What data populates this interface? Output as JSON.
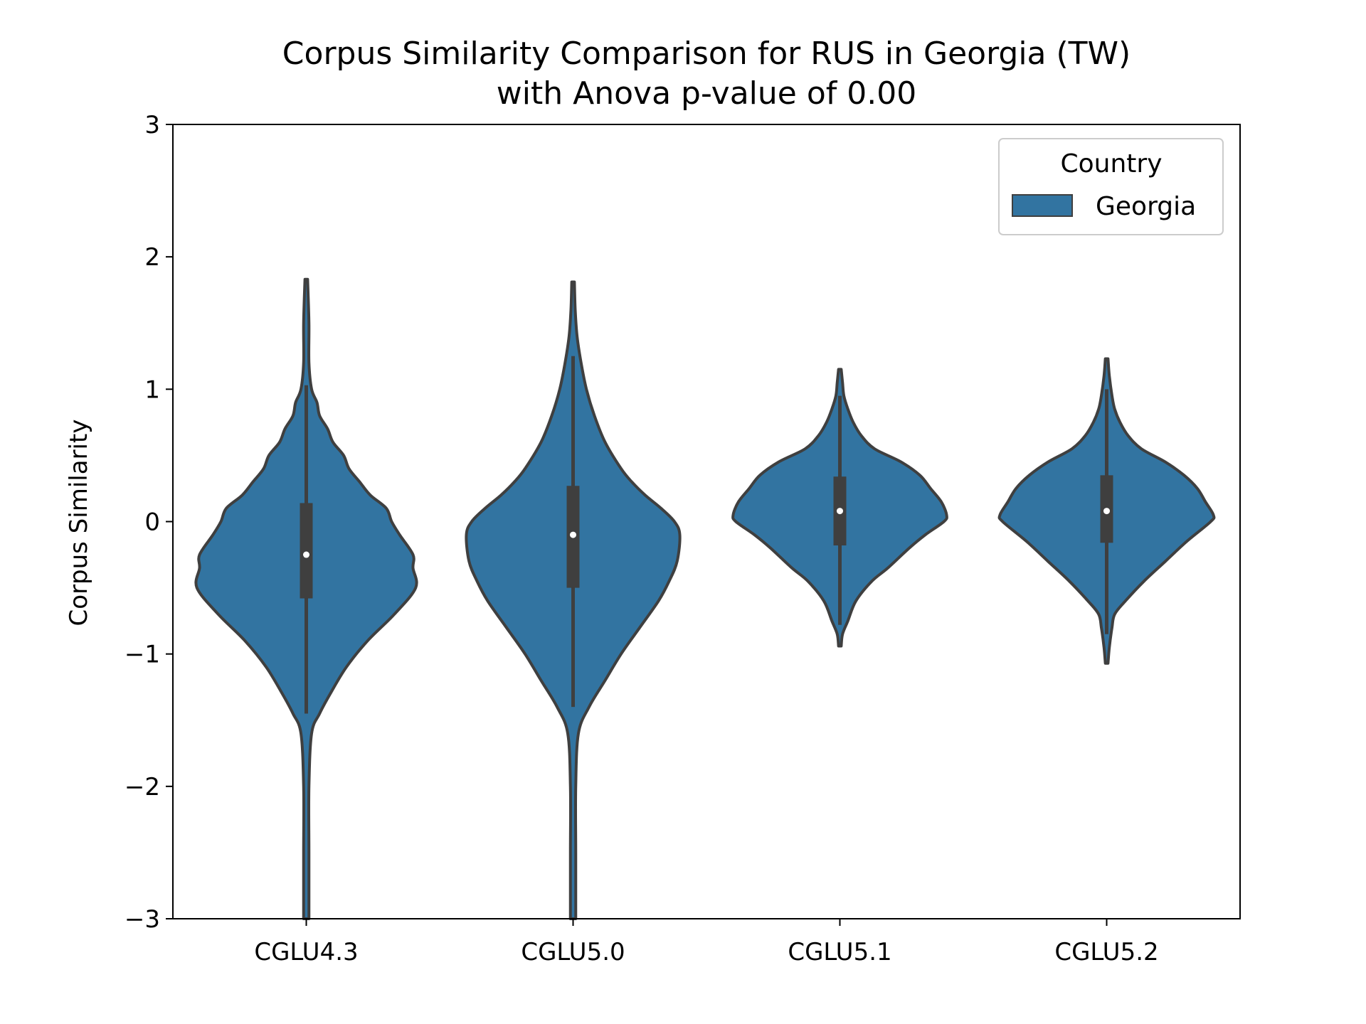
{
  "chart_data": {
    "type": "violin",
    "title": "Corpus Similarity Comparison for RUS in Georgia (TW)",
    "subtitle": "with Anova p-value of 0.00",
    "xlabel": "",
    "ylabel": "Corpus Similarity",
    "ylim": [
      -3,
      3
    ],
    "yticks": [
      -3,
      -2,
      -1,
      0,
      1,
      2,
      3
    ],
    "ytick_labels": [
      "−3",
      "−2",
      "−1",
      "0",
      "1",
      "2",
      "3"
    ],
    "categories": [
      "CGLU4.3",
      "CGLU5.0",
      "CGLU5.1",
      "CGLU5.2"
    ],
    "grid": false,
    "legend": {
      "title": "Country",
      "position": "top-right",
      "entries": [
        {
          "name": "Georgia",
          "color": "#3274a1"
        }
      ]
    },
    "colors": {
      "fill": "#3274a1",
      "edge": "#3f3f3f",
      "median": "#ffffff"
    },
    "series": [
      {
        "name": "Georgia",
        "violins": [
          {
            "category": "CGLU4.3",
            "median": -0.25,
            "q1": -0.58,
            "q3": 0.14,
            "whisker_low": -1.45,
            "whisker_high": 1.03,
            "min": -3.0,
            "max": 1.83,
            "density": [
              [
                -3.0,
                0.01
              ],
              [
                -2.5,
                0.01
              ],
              [
                -2.0,
                0.01
              ],
              [
                -1.6,
                0.02
              ],
              [
                -1.45,
                0.05
              ],
              [
                -1.3,
                0.09
              ],
              [
                -1.1,
                0.15
              ],
              [
                -0.9,
                0.23
              ],
              [
                -0.7,
                0.33
              ],
              [
                -0.5,
                0.41
              ],
              [
                -0.35,
                0.4
              ],
              [
                -0.25,
                0.4
              ],
              [
                -0.1,
                0.35
              ],
              [
                0.0,
                0.32
              ],
              [
                0.1,
                0.3
              ],
              [
                0.2,
                0.24
              ],
              [
                0.3,
                0.2
              ],
              [
                0.4,
                0.16
              ],
              [
                0.5,
                0.14
              ],
              [
                0.6,
                0.1
              ],
              [
                0.7,
                0.08
              ],
              [
                0.8,
                0.05
              ],
              [
                0.9,
                0.04
              ],
              [
                1.0,
                0.02
              ],
              [
                1.2,
                0.01
              ],
              [
                1.5,
                0.01
              ],
              [
                1.83,
                0.005
              ]
            ]
          },
          {
            "category": "CGLU5.0",
            "median": -0.1,
            "q1": -0.5,
            "q3": 0.27,
            "whisker_low": -1.4,
            "whisker_high": 1.25,
            "min": -3.0,
            "max": 1.81,
            "density": [
              [
                -3.0,
                0.01
              ],
              [
                -2.5,
                0.01
              ],
              [
                -2.0,
                0.01
              ],
              [
                -1.6,
                0.02
              ],
              [
                -1.4,
                0.06
              ],
              [
                -1.2,
                0.12
              ],
              [
                -1.0,
                0.18
              ],
              [
                -0.8,
                0.25
              ],
              [
                -0.6,
                0.32
              ],
              [
                -0.45,
                0.36
              ],
              [
                -0.3,
                0.39
              ],
              [
                -0.1,
                0.4
              ],
              [
                0.0,
                0.38
              ],
              [
                0.1,
                0.33
              ],
              [
                0.2,
                0.27
              ],
              [
                0.3,
                0.22
              ],
              [
                0.4,
                0.18
              ],
              [
                0.6,
                0.12
              ],
              [
                0.8,
                0.08
              ],
              [
                1.0,
                0.05
              ],
              [
                1.2,
                0.03
              ],
              [
                1.4,
                0.015
              ],
              [
                1.6,
                0.008
              ],
              [
                1.81,
                0.005
              ]
            ]
          },
          {
            "category": "CGLU5.1",
            "median": 0.08,
            "q1": -0.18,
            "q3": 0.34,
            "whisker_low": -0.78,
            "whisker_high": 0.95,
            "min": -0.94,
            "max": 1.15,
            "density": [
              [
                -0.94,
                0.005
              ],
              [
                -0.85,
                0.01
              ],
              [
                -0.75,
                0.03
              ],
              [
                -0.6,
                0.06
              ],
              [
                -0.45,
                0.12
              ],
              [
                -0.35,
                0.18
              ],
              [
                -0.2,
                0.26
              ],
              [
                -0.1,
                0.32
              ],
              [
                0.0,
                0.39
              ],
              [
                0.05,
                0.4
              ],
              [
                0.15,
                0.38
              ],
              [
                0.25,
                0.34
              ],
              [
                0.35,
                0.3
              ],
              [
                0.45,
                0.23
              ],
              [
                0.55,
                0.13
              ],
              [
                0.65,
                0.08
              ],
              [
                0.75,
                0.05
              ],
              [
                0.85,
                0.03
              ],
              [
                0.95,
                0.015
              ],
              [
                1.05,
                0.01
              ],
              [
                1.15,
                0.005
              ]
            ]
          },
          {
            "category": "CGLU5.2",
            "median": 0.08,
            "q1": -0.16,
            "q3": 0.35,
            "whisker_low": -0.85,
            "whisker_high": 1.0,
            "min": -1.07,
            "max": 1.23,
            "density": [
              [
                -1.07,
                0.005
              ],
              [
                -0.95,
                0.01
              ],
              [
                -0.8,
                0.02
              ],
              [
                -0.7,
                0.03
              ],
              [
                -0.6,
                0.07
              ],
              [
                -0.45,
                0.14
              ],
              [
                -0.3,
                0.22
              ],
              [
                -0.15,
                0.3
              ],
              [
                0.0,
                0.39
              ],
              [
                0.05,
                0.4
              ],
              [
                0.15,
                0.37
              ],
              [
                0.25,
                0.34
              ],
              [
                0.35,
                0.29
              ],
              [
                0.45,
                0.22
              ],
              [
                0.55,
                0.13
              ],
              [
                0.65,
                0.08
              ],
              [
                0.75,
                0.05
              ],
              [
                0.85,
                0.03
              ],
              [
                0.95,
                0.02
              ],
              [
                1.1,
                0.01
              ],
              [
                1.23,
                0.005
              ]
            ]
          }
        ]
      }
    ]
  }
}
